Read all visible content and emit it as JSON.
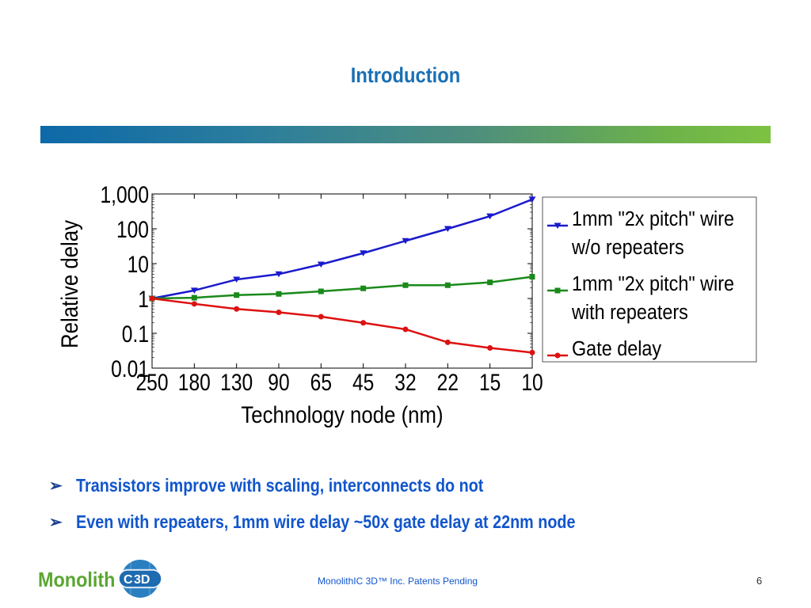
{
  "slide": {
    "title": "Introduction",
    "bullets": [
      "Transistors improve with scaling, interconnects do not",
      "Even with repeaters, 1mm wire delay ~50x gate delay at 22nm node"
    ],
    "footer": "MonolithIC 3D™ Inc. Patents Pending",
    "page_number": "6",
    "logo": {
      "text": "Monolith",
      "badge": "3D"
    },
    "colors": {
      "title": "#1a6fb3",
      "bullets": "#1155cc"
    }
  },
  "chart_data": {
    "type": "line",
    "xlabel": "Technology node (nm)",
    "ylabel": "Relative delay",
    "categories": [
      "250",
      "180",
      "130",
      "90",
      "65",
      "45",
      "32",
      "22",
      "15",
      "10"
    ],
    "y_ticks": [
      {
        "value": 0.01,
        "label": "0.01"
      },
      {
        "value": 0.1,
        "label": "0.1"
      },
      {
        "value": 1,
        "label": "1"
      },
      {
        "value": 10,
        "label": "10"
      },
      {
        "value": 100,
        "label": "100"
      },
      {
        "value": 1000,
        "label": "1,000"
      }
    ],
    "y_scale": "log",
    "ylim": [
      0.01,
      1000
    ],
    "legend_position": "right",
    "series": [
      {
        "name": "1mm \"2x pitch\" wire w/o repeaters",
        "legend_lines": [
          "1mm \"2x pitch\" wire",
          "w/o repeaters"
        ],
        "color": "#1a1acc",
        "marker": "triangle-down",
        "values": [
          1,
          1.7,
          3.5,
          5,
          9.5,
          20,
          45,
          100,
          230,
          700
        ]
      },
      {
        "name": "1mm \"2x pitch\" wire with repeaters",
        "legend_lines": [
          "1mm \"2x pitch\" wire",
          "with repeaters"
        ],
        "color": "#1a8a1a",
        "marker": "square",
        "values": [
          1,
          1.05,
          1.25,
          1.35,
          1.6,
          1.95,
          2.4,
          2.4,
          2.9,
          4.2
        ]
      },
      {
        "name": "Gate delay",
        "legend_lines": [
          "Gate delay"
        ],
        "color": "#dd1111",
        "marker": "circle",
        "values": [
          1,
          0.7,
          0.5,
          0.4,
          0.3,
          0.2,
          0.13,
          0.055,
          0.038,
          0.028
        ]
      }
    ]
  }
}
